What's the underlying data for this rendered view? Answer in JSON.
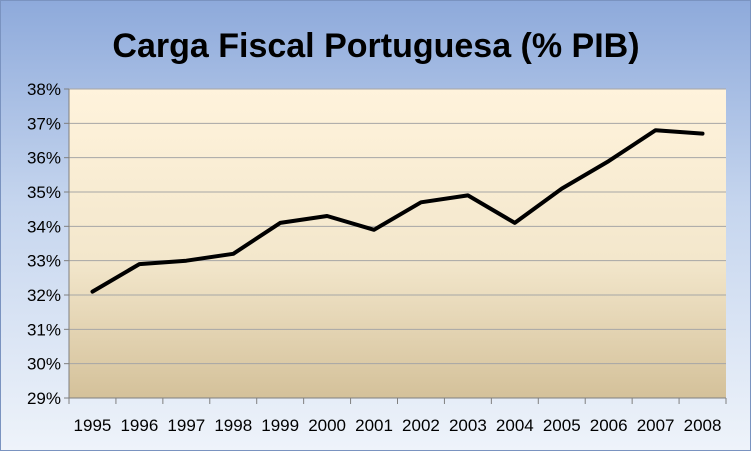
{
  "chart_data": {
    "type": "line",
    "title": "Carga Fiscal Portuguesa (% PIB)",
    "xlabel": "",
    "ylabel": "",
    "categories": [
      "1995",
      "1996",
      "1997",
      "1998",
      "1999",
      "2000",
      "2001",
      "2002",
      "2003",
      "2004",
      "2005",
      "2006",
      "2007",
      "2008"
    ],
    "series": [
      {
        "name": "Carga Fiscal",
        "values": [
          32.1,
          32.9,
          33.0,
          33.2,
          34.1,
          34.3,
          33.9,
          34.7,
          34.9,
          34.1,
          35.1,
          35.9,
          36.8,
          36.7
        ]
      }
    ],
    "ylim": [
      29,
      38
    ],
    "yticks": [
      "29%",
      "30%",
      "31%",
      "32%",
      "33%",
      "34%",
      "35%",
      "36%",
      "37%",
      "38%"
    ],
    "grid": true,
    "legend": "none",
    "colors": {
      "line": "#000000",
      "gridline": "#a6a6a6",
      "plot_top": "#fff3dc",
      "plot_bottom": "#d4c19a"
    }
  }
}
